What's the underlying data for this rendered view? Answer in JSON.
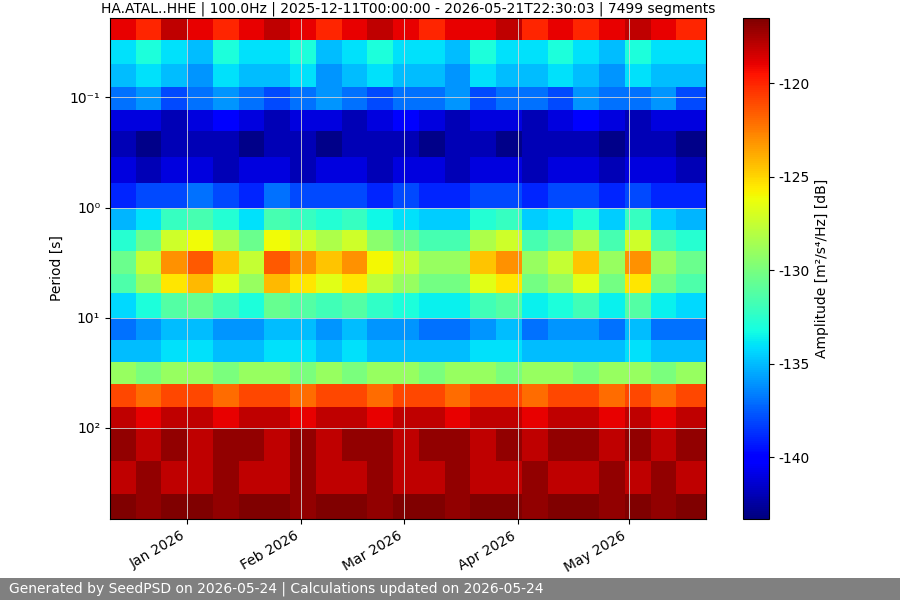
{
  "chart_data": {
    "type": "heatmap",
    "title": "HA.ATAL..HHE | 100.0Hz | 2025-12-11T00:00:00 - 2026-05-21T22:30:03 | 7499 segments",
    "y_label": "Period [s]",
    "footer": "Generated by SeedPSD on 2026-05-24 | Calculations updated on 2026-05-24",
    "log": "y",
    "grid": true,
    "xlim": [
      "2025-12-11T00:00:00",
      "2026-05-21T22:30:03"
    ],
    "xticks": [
      {
        "value": "2026-01-01T00:00:00",
        "label": "Jan 2026"
      },
      {
        "value": "2026-02-01T00:00:00",
        "label": "Feb 2026"
      },
      {
        "value": "2026-03-01T00:00:00",
        "label": "Mar 2026"
      },
      {
        "value": "2026-04-01T00:00:00",
        "label": "Apr 2026"
      },
      {
        "value": "2026-05-01T00:00:00",
        "label": "May 2026"
      }
    ],
    "ylim": [
      670,
      0.019
    ],
    "yticks": [
      {
        "value": 0.1,
        "label": "10⁻¹"
      },
      {
        "value": 1,
        "label": "10⁰"
      },
      {
        "value": 10,
        "label": "10¹"
      },
      {
        "value": 100,
        "label": "10²"
      }
    ],
    "time_edges": [
      "2025-12-11T00:00:00",
      "2025-12-18T00:00:00",
      "2025-12-25T00:00:00",
      "2026-01-01T00:00:00",
      "2026-01-08T00:00:00",
      "2026-01-15T00:00:00",
      "2026-01-22T00:00:00",
      "2026-01-29T00:00:00",
      "2026-02-05T00:00:00",
      "2026-02-12T00:00:00",
      "2026-02-19T00:00:00",
      "2026-02-26T00:00:00",
      "2026-03-05T00:00:00",
      "2026-03-12T00:00:00",
      "2026-03-19T00:00:00",
      "2026-03-26T00:00:00",
      "2026-04-02T00:00:00",
      "2026-04-09T00:00:00",
      "2026-04-16T00:00:00",
      "2026-04-23T00:00:00",
      "2026-04-30T00:00:00",
      "2026-05-07T00:00:00",
      "2026-05-14T00:00:00",
      "2026-05-21T22:30:03"
    ],
    "period_edges": [
      0.019,
      0.03,
      0.05,
      0.08,
      0.13,
      0.2,
      0.35,
      0.6,
      1,
      1.6,
      2.5,
      4,
      6,
      10,
      16,
      25,
      40,
      65,
      100,
      200,
      400,
      670
    ],
    "cells": [
      [
        -119,
        -120,
        -118,
        -119,
        -120,
        -119,
        -118,
        -119,
        -120,
        -119,
        -118,
        -119,
        -120,
        -119,
        -119,
        -118,
        -120,
        -119,
        -120,
        -119,
        -118,
        -119,
        -120
      ],
      [
        -134,
        -133,
        -134,
        -135,
        -133,
        -134,
        -134,
        -133,
        -135,
        -134,
        -133,
        -134,
        -134,
        -135,
        -133,
        -134,
        -134,
        -133,
        -134,
        -135,
        -133,
        -134,
        -134
      ],
      [
        -135,
        -134,
        -135,
        -136,
        -134,
        -135,
        -135,
        -134,
        -136,
        -135,
        -134,
        -135,
        -135,
        -136,
        -134,
        -135,
        -135,
        -134,
        -135,
        -136,
        -134,
        -135,
        -135
      ],
      [
        -137,
        -136,
        -138,
        -137,
        -136,
        -137,
        -138,
        -137,
        -136,
        -137,
        -138,
        -137,
        -137,
        -136,
        -138,
        -137,
        -137,
        -138,
        -136,
        -137,
        -137,
        -136,
        -138
      ],
      [
        -141,
        -141,
        -142,
        -141,
        -140,
        -141,
        -142,
        -141,
        -141,
        -142,
        -141,
        -140,
        -141,
        -142,
        -141,
        -141,
        -142,
        -141,
        -140,
        -141,
        -142,
        -141,
        -141
      ],
      [
        -142,
        -143,
        -142,
        -142,
        -142,
        -143,
        -142,
        -142,
        -143,
        -142,
        -142,
        -142,
        -143,
        -142,
        -142,
        -143,
        -142,
        -142,
        -142,
        -143,
        -142,
        -142,
        -143
      ],
      [
        -141,
        -142,
        -141,
        -141,
        -142,
        -141,
        -141,
        -142,
        -141,
        -141,
        -142,
        -141,
        -141,
        -142,
        -141,
        -141,
        -142,
        -141,
        -141,
        -142,
        -141,
        -141,
        -142
      ],
      [
        -139,
        -138,
        -138,
        -137,
        -138,
        -139,
        -137,
        -138,
        -138,
        -138,
        -139,
        -138,
        -139,
        -139,
        -138,
        -138,
        -139,
        -138,
        -138,
        -139,
        -138,
        -139,
        -139
      ],
      [
        -135.2,
        -134,
        -132.2,
        -131.6,
        -132.8,
        -134,
        -131.6,
        -132.2,
        -132.8,
        -132.2,
        -133.4,
        -134,
        -134.6,
        -134.6,
        -132.8,
        -132.2,
        -134.6,
        -134,
        -132.8,
        -134.6,
        -132.2,
        -134.6,
        -135.2
      ],
      [
        -132.7,
        -130.5,
        -127.2,
        -126.1,
        -128.3,
        -130.5,
        -126.1,
        -127.2,
        -128.3,
        -127.2,
        -129.4,
        -130.5,
        -131.6,
        -131.6,
        -128.3,
        -127.2,
        -131.6,
        -130.5,
        -128.3,
        -131.6,
        -127.2,
        -131.6,
        -132.7
      ],
      [
        -130.5,
        -127.5,
        -123,
        -121.5,
        -124.5,
        -127.5,
        -121.5,
        -123,
        -124.5,
        -123,
        -126,
        -127.5,
        -129,
        -129,
        -124.5,
        -123,
        -129,
        -127.5,
        -124.5,
        -129,
        -123,
        -129,
        -130.5
      ],
      [
        -131.4,
        -129,
        -125.4,
        -124.2,
        -126.6,
        -129,
        -124.2,
        -125.4,
        -126.6,
        -125.4,
        -127.8,
        -129,
        -130.2,
        -130.2,
        -126.6,
        -125.4,
        -130.2,
        -129,
        -126.6,
        -130.2,
        -125.4,
        -130.2,
        -131.4
      ],
      [
        -134.2,
        -133,
        -131.2,
        -130.6,
        -131.8,
        -133,
        -130.6,
        -131.2,
        -131.8,
        -131.2,
        -132.4,
        -133,
        -133.6,
        -133.6,
        -131.8,
        -131.2,
        -133.6,
        -133,
        -131.8,
        -133.6,
        -131.2,
        -133.6,
        -134.2
      ],
      [
        -137,
        -136,
        -135,
        -135,
        -136,
        -136,
        -135,
        -135,
        -136,
        -135,
        -136,
        -136,
        -137,
        -137,
        -136,
        -135,
        -137,
        -136,
        -136,
        -137,
        -135,
        -137,
        -137
      ],
      [
        -135,
        -135,
        -134,
        -134,
        -135,
        -135,
        -134,
        -134,
        -135,
        -134,
        -135,
        -135,
        -135,
        -135,
        -134,
        -134,
        -135,
        -135,
        -135,
        -135,
        -134,
        -135,
        -135
      ],
      [
        -129,
        -130,
        -129,
        -129,
        -130,
        -129,
        -129,
        -130,
        -129,
        -130,
        -129,
        -129,
        -130,
        -129,
        -129,
        -130,
        -129,
        -129,
        -130,
        -129,
        -129,
        -130,
        -129
      ],
      [
        -121,
        -122,
        -121,
        -121,
        -122,
        -121,
        -121,
        -122,
        -121,
        -121,
        -122,
        -121,
        -121,
        -122,
        -121,
        -121,
        -122,
        -121,
        -121,
        -122,
        -121,
        -122,
        -121
      ],
      [
        -118,
        -119,
        -118,
        -118,
        -119,
        -118,
        -118,
        -119,
        -118,
        -118,
        -119,
        -118,
        -118,
        -119,
        -118,
        -118,
        -119,
        -118,
        -118,
        -119,
        -118,
        -119,
        -118
      ],
      [
        -117,
        -118,
        -117,
        -118,
        -117,
        -117,
        -118,
        -117,
        -118,
        -117,
        -117,
        -118,
        -117,
        -117,
        -118,
        -117,
        -118,
        -117,
        -117,
        -118,
        -117,
        -118,
        -117
      ],
      [
        -118,
        -117,
        -118,
        -118,
        -117,
        -118,
        -118,
        -117,
        -118,
        -118,
        -117,
        -118,
        -118,
        -117,
        -118,
        -118,
        -117,
        -118,
        -118,
        -117,
        -118,
        -117,
        -118
      ],
      [
        -116.5,
        -117,
        -116.5,
        -116.5,
        -117,
        -116.5,
        -116.5,
        -117,
        -116.5,
        -116.5,
        -117,
        -116.5,
        -116.5,
        -117,
        -116.5,
        -116.5,
        -117,
        -116.5,
        -116.5,
        -117,
        -116.5,
        -117,
        -116.5
      ]
    ],
    "colorbar": {
      "label": "Amplitude [m²/s⁴/Hz] [dB]",
      "range": [
        -143.3,
        -116.5
      ],
      "ticks": [
        -140,
        -135,
        -130,
        -125,
        -120
      ]
    }
  }
}
